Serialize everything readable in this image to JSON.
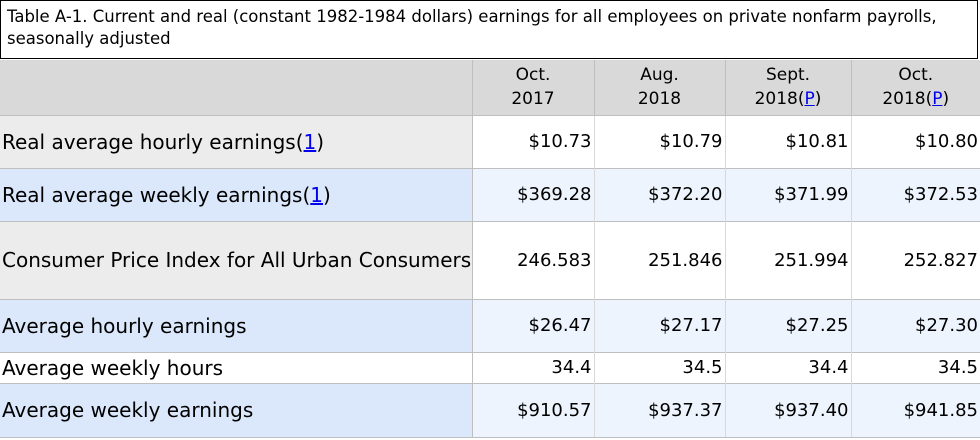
{
  "caption": {
    "line1": "Table A-1. Current and real (constant 1982-1984 dollars) earnings for all employees on private nonfarm payrolls,",
    "line2": "seasonally adjusted"
  },
  "columns": [
    {
      "line1": "Oct.",
      "line2": "2017",
      "footnote": ""
    },
    {
      "line1": "Aug.",
      "line2": "2018",
      "footnote": ""
    },
    {
      "line1": "Sept.",
      "line2": "2018(",
      "footnote": "P",
      "close": ")"
    },
    {
      "line1": "Oct.",
      "line2": "2018(",
      "footnote": "P",
      "close": ")"
    }
  ],
  "rows": [
    {
      "label": "Real average hourly earnings(",
      "footnote": "1",
      "close": ")",
      "values": [
        "$10.73",
        "$10.79",
        "$10.81",
        "$10.80"
      ]
    },
    {
      "label": "Real average weekly earnings(",
      "footnote": "1",
      "close": ")",
      "values": [
        "$369.28",
        "$372.20",
        "$371.99",
        "$372.53"
      ]
    },
    {
      "label": "Consumer Price Index for All Urban Consumers",
      "values": [
        "246.583",
        "251.846",
        "251.994",
        "252.827"
      ]
    },
    {
      "label": "Average hourly earnings",
      "values": [
        "$26.47",
        "$27.17",
        "$27.25",
        "$27.30"
      ]
    },
    {
      "label": "Average weekly hours",
      "values": [
        "34.4",
        "34.5",
        "34.4",
        "34.5"
      ]
    },
    {
      "label": "Average weekly earnings",
      "values": [
        "$910.57",
        "$937.37",
        "$937.40",
        "$941.85"
      ]
    }
  ]
}
